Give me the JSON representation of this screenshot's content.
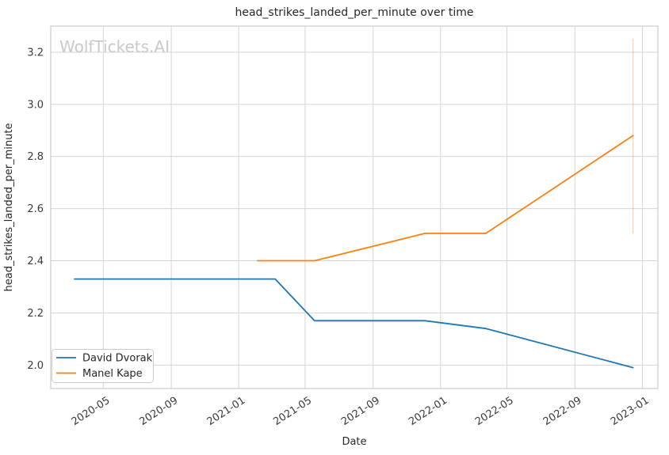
{
  "watermark": "WolfTickets.AI",
  "colors": {
    "series_blue": "#1f77b4",
    "series_orange": "#ff7f0e",
    "error_bar": "#ff7f0e",
    "grid": "#d5d5d5",
    "plot_border": "#cccccc",
    "text": "#262626",
    "tick_text": "#3a3a3a",
    "watermark": "#c9c9c9",
    "background": "#ffffff"
  },
  "legend": {
    "items": [
      {
        "label": "David Dvorak",
        "color": "#1f77b4"
      },
      {
        "label": "Manel Kape",
        "color": "#ff7f0e"
      }
    ]
  },
  "chart_data": {
    "type": "line",
    "title": "head_strikes_landed_per_minute over time",
    "xlabel": "Date",
    "ylabel": "head_strikes_landed_per_minute",
    "grid": true,
    "legend_position": "lower left",
    "x_tick_labels": [
      "2020-05",
      "2020-09",
      "2021-01",
      "2021-05",
      "2021-09",
      "2022-01",
      "2022-05",
      "2022-09",
      "2023-01"
    ],
    "x_tick_dates": [
      "2020-05-01",
      "2020-09-01",
      "2021-01-01",
      "2021-05-01",
      "2021-09-01",
      "2022-01-01",
      "2022-05-01",
      "2022-09-01",
      "2023-01-01"
    ],
    "y_tick_labels": [
      "2.0",
      "2.2",
      "2.4",
      "2.6",
      "2.8",
      "3.0",
      "3.2"
    ],
    "y_ticks": [
      2.0,
      2.2,
      2.4,
      2.6,
      2.8,
      3.0,
      3.2
    ],
    "x_domain": [
      "2020-01-27",
      "2023-01-29"
    ],
    "y_domain": [
      1.91,
      3.3
    ],
    "series": [
      {
        "name": "David Dvorak",
        "color": "#1f77b4",
        "points": [
          [
            "2020-03-10",
            2.33
          ],
          [
            "2021-03-08",
            2.33
          ],
          [
            "2021-05-18",
            2.17
          ],
          [
            "2021-12-04",
            2.17
          ],
          [
            "2022-03-24",
            2.14
          ],
          [
            "2022-12-15",
            1.99
          ]
        ]
      },
      {
        "name": "Manel Kape",
        "color": "#ff7f0e",
        "points": [
          [
            "2021-02-04",
            2.4
          ],
          [
            "2021-05-18",
            2.4
          ],
          [
            "2021-12-04",
            2.505
          ],
          [
            "2022-03-24",
            2.505
          ],
          [
            "2022-12-15",
            2.88
          ]
        ]
      }
    ],
    "error_bar": {
      "series": "Manel Kape",
      "x": "2022-12-15",
      "y_low": 2.505,
      "y_high": 3.25,
      "color": "#ff7f0e",
      "opacity": 0.35
    }
  }
}
